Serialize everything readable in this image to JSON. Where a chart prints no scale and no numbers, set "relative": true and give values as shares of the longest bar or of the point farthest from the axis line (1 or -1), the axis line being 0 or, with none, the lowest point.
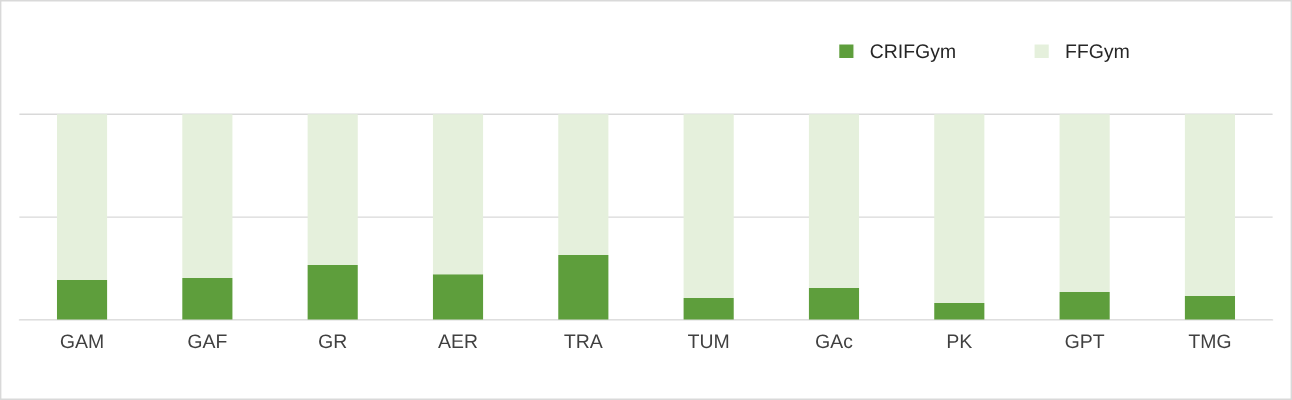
{
  "chart_data": {
    "type": "bar",
    "stacked": true,
    "relative": true,
    "grid": "y",
    "legend": "top right",
    "ref_lines": [
      {
        "axis": "y",
        "value": 0.5,
        "color": "#d9d9d9"
      }
    ],
    "categories": [
      "GAM",
      "GAF",
      "GR",
      "AER",
      "TRA",
      "TUM",
      "GAc",
      "PK",
      "GPT",
      "TMG"
    ],
    "series": [
      {
        "name": "CRIFGym",
        "color": "#5e9e3c",
        "values": [
          0.194,
          0.204,
          0.267,
          0.223,
          0.316,
          0.107,
          0.155,
          0.083,
          0.136,
          0.117
        ]
      },
      {
        "name": "FFGym",
        "color": "#e5f0dc",
        "values": [
          0.806,
          0.796,
          0.733,
          0.777,
          0.684,
          0.893,
          0.845,
          0.917,
          0.864,
          0.883
        ]
      }
    ]
  }
}
